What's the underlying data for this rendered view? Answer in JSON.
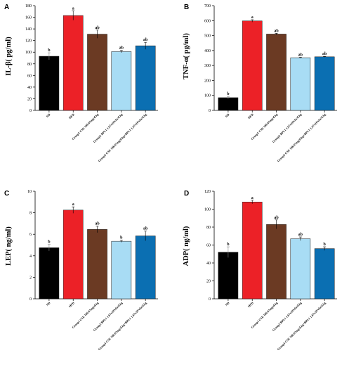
{
  "categories": [
    "ND",
    "HFD",
    "Group1 CSE 166.67mg/d.kg",
    "Group2 BPL1 1.67x10⁸cfu/d.kg",
    "Group3 CSE 166.67mg/d.kg+BPL1 1.67x10⁸cfu/d.kg"
  ],
  "colors": [
    "#000000",
    "#ec2127",
    "#6b3a23",
    "#a8dcf4",
    "#0b6fb2"
  ],
  "chart_data": [
    {
      "type": "bar",
      "panel": "A",
      "ylabel": "IL-β( pg/ml)",
      "ylim": [
        0,
        180
      ],
      "yticks": [
        0,
        20,
        40,
        60,
        80,
        100,
        120,
        140,
        160,
        180
      ],
      "categories": [
        "ND",
        "HFD",
        "Group1 CSE 166.67mg/d.kg",
        "Group2 BPL1 1.67x10⁸cfu/d.kg",
        "Group3 CSE 166.67mg/d.kg+BPL1 1.67x10⁸cfu/d.kg"
      ],
      "values": [
        93,
        163,
        131,
        101,
        111
      ],
      "errors": [
        6,
        8,
        7,
        2,
        6
      ],
      "significance": [
        "b",
        "a",
        "ab",
        "ab",
        "ab"
      ]
    },
    {
      "type": "bar",
      "panel": "B",
      "ylabel": "TNF-α( pg/ml)",
      "ylim": [
        0,
        700
      ],
      "yticks": [
        0,
        100,
        200,
        300,
        400,
        500,
        600,
        700
      ],
      "categories": [
        "ND",
        "HFD",
        "Group1 CSE 166.67mg/d.kg",
        "Group2 BPL1 1.67x10⁸cfu/d.kg",
        "Group3 CSE 166.67mg/d.kg+BPL1 1.67x10⁸cfu/d.kg"
      ],
      "values": [
        85,
        598,
        510,
        352,
        358
      ],
      "errors": [
        8,
        8,
        5,
        3,
        3
      ],
      "significance": [
        "b",
        "a",
        "ab",
        "ab",
        "ab"
      ]
    },
    {
      "type": "bar",
      "panel": "C",
      "ylabel": "LEP( ng/ml)",
      "ylim": [
        0,
        10
      ],
      "yticks": [
        0,
        2,
        4,
        6,
        8,
        10
      ],
      "categories": [
        "ND",
        "HFD",
        "Group1 CSE 166.67mg/d.kg",
        "Group2 BPL1 1.67x10⁸cfu/d.kg",
        "Group3 CSE 166.67mg/d.kg+BPL1 1.67x10⁸cfu/d.kg"
      ],
      "values": [
        4.75,
        8.25,
        6.45,
        5.35,
        5.85
      ],
      "errors": [
        0.3,
        0.3,
        0.3,
        0.1,
        0.45
      ],
      "significance": [
        "b",
        "a",
        "ab",
        "b",
        "ab"
      ]
    },
    {
      "type": "bar",
      "panel": "D",
      "ylabel": "ADP( ng/ml)",
      "ylim": [
        0,
        120
      ],
      "yticks": [
        0,
        20,
        40,
        60,
        80,
        100,
        120
      ],
      "categories": [
        "ND",
        "HFD",
        "Group1 CSE 166.67mg/d.kg",
        "Group2 BPL1 1.67x10⁸cfu/d.kg",
        "Group3 CSE 166.67mg/d.kg+BPL1 1.67x10⁸cfu/d.kg"
      ],
      "values": [
        52,
        108,
        83,
        67,
        56
      ],
      "errors": [
        6,
        2,
        5,
        2,
        2
      ],
      "significance": [
        "b",
        "a",
        "ab",
        "ab",
        "b"
      ]
    }
  ]
}
